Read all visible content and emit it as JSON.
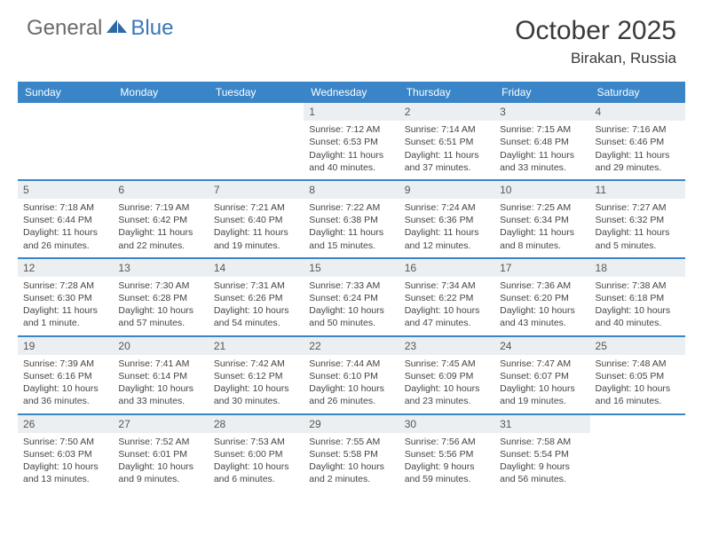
{
  "logo": {
    "part1": "General",
    "part2": "Blue"
  },
  "title": "October 2025",
  "location": "Birakan, Russia",
  "colors": {
    "header_bg": "#3a85c8",
    "header_text": "#ffffff",
    "daynum_bg": "#eceff1",
    "row_border": "#3a85c8",
    "body_text": "#444444",
    "logo_gray": "#6b6b6b",
    "logo_blue": "#3a78b5"
  },
  "day_headers": [
    "Sunday",
    "Monday",
    "Tuesday",
    "Wednesday",
    "Thursday",
    "Friday",
    "Saturday"
  ],
  "weeks": [
    [
      {
        "num": "",
        "sunrise": "",
        "sunset": "",
        "daylight": ""
      },
      {
        "num": "",
        "sunrise": "",
        "sunset": "",
        "daylight": ""
      },
      {
        "num": "",
        "sunrise": "",
        "sunset": "",
        "daylight": ""
      },
      {
        "num": "1",
        "sunrise": "Sunrise: 7:12 AM",
        "sunset": "Sunset: 6:53 PM",
        "daylight": "Daylight: 11 hours and 40 minutes."
      },
      {
        "num": "2",
        "sunrise": "Sunrise: 7:14 AM",
        "sunset": "Sunset: 6:51 PM",
        "daylight": "Daylight: 11 hours and 37 minutes."
      },
      {
        "num": "3",
        "sunrise": "Sunrise: 7:15 AM",
        "sunset": "Sunset: 6:48 PM",
        "daylight": "Daylight: 11 hours and 33 minutes."
      },
      {
        "num": "4",
        "sunrise": "Sunrise: 7:16 AM",
        "sunset": "Sunset: 6:46 PM",
        "daylight": "Daylight: 11 hours and 29 minutes."
      }
    ],
    [
      {
        "num": "5",
        "sunrise": "Sunrise: 7:18 AM",
        "sunset": "Sunset: 6:44 PM",
        "daylight": "Daylight: 11 hours and 26 minutes."
      },
      {
        "num": "6",
        "sunrise": "Sunrise: 7:19 AM",
        "sunset": "Sunset: 6:42 PM",
        "daylight": "Daylight: 11 hours and 22 minutes."
      },
      {
        "num": "7",
        "sunrise": "Sunrise: 7:21 AM",
        "sunset": "Sunset: 6:40 PM",
        "daylight": "Daylight: 11 hours and 19 minutes."
      },
      {
        "num": "8",
        "sunrise": "Sunrise: 7:22 AM",
        "sunset": "Sunset: 6:38 PM",
        "daylight": "Daylight: 11 hours and 15 minutes."
      },
      {
        "num": "9",
        "sunrise": "Sunrise: 7:24 AM",
        "sunset": "Sunset: 6:36 PM",
        "daylight": "Daylight: 11 hours and 12 minutes."
      },
      {
        "num": "10",
        "sunrise": "Sunrise: 7:25 AM",
        "sunset": "Sunset: 6:34 PM",
        "daylight": "Daylight: 11 hours and 8 minutes."
      },
      {
        "num": "11",
        "sunrise": "Sunrise: 7:27 AM",
        "sunset": "Sunset: 6:32 PM",
        "daylight": "Daylight: 11 hours and 5 minutes."
      }
    ],
    [
      {
        "num": "12",
        "sunrise": "Sunrise: 7:28 AM",
        "sunset": "Sunset: 6:30 PM",
        "daylight": "Daylight: 11 hours and 1 minute."
      },
      {
        "num": "13",
        "sunrise": "Sunrise: 7:30 AM",
        "sunset": "Sunset: 6:28 PM",
        "daylight": "Daylight: 10 hours and 57 minutes."
      },
      {
        "num": "14",
        "sunrise": "Sunrise: 7:31 AM",
        "sunset": "Sunset: 6:26 PM",
        "daylight": "Daylight: 10 hours and 54 minutes."
      },
      {
        "num": "15",
        "sunrise": "Sunrise: 7:33 AM",
        "sunset": "Sunset: 6:24 PM",
        "daylight": "Daylight: 10 hours and 50 minutes."
      },
      {
        "num": "16",
        "sunrise": "Sunrise: 7:34 AM",
        "sunset": "Sunset: 6:22 PM",
        "daylight": "Daylight: 10 hours and 47 minutes."
      },
      {
        "num": "17",
        "sunrise": "Sunrise: 7:36 AM",
        "sunset": "Sunset: 6:20 PM",
        "daylight": "Daylight: 10 hours and 43 minutes."
      },
      {
        "num": "18",
        "sunrise": "Sunrise: 7:38 AM",
        "sunset": "Sunset: 6:18 PM",
        "daylight": "Daylight: 10 hours and 40 minutes."
      }
    ],
    [
      {
        "num": "19",
        "sunrise": "Sunrise: 7:39 AM",
        "sunset": "Sunset: 6:16 PM",
        "daylight": "Daylight: 10 hours and 36 minutes."
      },
      {
        "num": "20",
        "sunrise": "Sunrise: 7:41 AM",
        "sunset": "Sunset: 6:14 PM",
        "daylight": "Daylight: 10 hours and 33 minutes."
      },
      {
        "num": "21",
        "sunrise": "Sunrise: 7:42 AM",
        "sunset": "Sunset: 6:12 PM",
        "daylight": "Daylight: 10 hours and 30 minutes."
      },
      {
        "num": "22",
        "sunrise": "Sunrise: 7:44 AM",
        "sunset": "Sunset: 6:10 PM",
        "daylight": "Daylight: 10 hours and 26 minutes."
      },
      {
        "num": "23",
        "sunrise": "Sunrise: 7:45 AM",
        "sunset": "Sunset: 6:09 PM",
        "daylight": "Daylight: 10 hours and 23 minutes."
      },
      {
        "num": "24",
        "sunrise": "Sunrise: 7:47 AM",
        "sunset": "Sunset: 6:07 PM",
        "daylight": "Daylight: 10 hours and 19 minutes."
      },
      {
        "num": "25",
        "sunrise": "Sunrise: 7:48 AM",
        "sunset": "Sunset: 6:05 PM",
        "daylight": "Daylight: 10 hours and 16 minutes."
      }
    ],
    [
      {
        "num": "26",
        "sunrise": "Sunrise: 7:50 AM",
        "sunset": "Sunset: 6:03 PM",
        "daylight": "Daylight: 10 hours and 13 minutes."
      },
      {
        "num": "27",
        "sunrise": "Sunrise: 7:52 AM",
        "sunset": "Sunset: 6:01 PM",
        "daylight": "Daylight: 10 hours and 9 minutes."
      },
      {
        "num": "28",
        "sunrise": "Sunrise: 7:53 AM",
        "sunset": "Sunset: 6:00 PM",
        "daylight": "Daylight: 10 hours and 6 minutes."
      },
      {
        "num": "29",
        "sunrise": "Sunrise: 7:55 AM",
        "sunset": "Sunset: 5:58 PM",
        "daylight": "Daylight: 10 hours and 2 minutes."
      },
      {
        "num": "30",
        "sunrise": "Sunrise: 7:56 AM",
        "sunset": "Sunset: 5:56 PM",
        "daylight": "Daylight: 9 hours and 59 minutes."
      },
      {
        "num": "31",
        "sunrise": "Sunrise: 7:58 AM",
        "sunset": "Sunset: 5:54 PM",
        "daylight": "Daylight: 9 hours and 56 minutes."
      },
      {
        "num": "",
        "sunrise": "",
        "sunset": "",
        "daylight": ""
      }
    ]
  ]
}
